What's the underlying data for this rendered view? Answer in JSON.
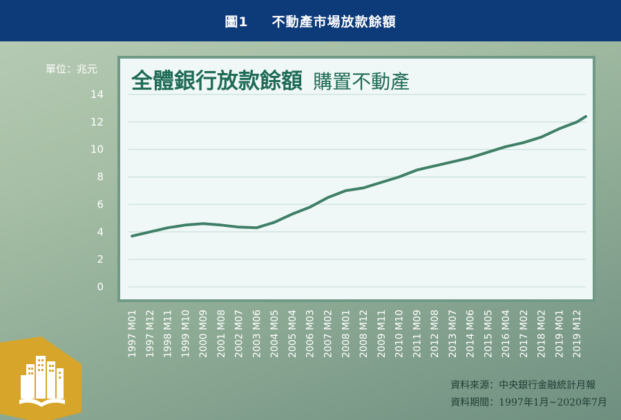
{
  "header": {
    "figure_label": "圖1",
    "title": "不動產市場放款餘額"
  },
  "unit_label": "單位：兆元",
  "chart_title": {
    "main": "全體銀行放款餘額",
    "sub": "購置不動產"
  },
  "source": {
    "line1": "資料來源：中央銀行金融統計月報",
    "line2": "資料期間：1997年1月~2020年7月"
  },
  "colors": {
    "header": "#0d3a78",
    "line": "#3f7f67",
    "title": "#1f6b56",
    "logo": "#d6a52a"
  },
  "icons": {
    "logo": "city-buildings-hexagon-icon"
  },
  "chart_data": {
    "type": "line",
    "title": "全體銀行放款餘額 購置不動產",
    "ylabel": "單位：兆元",
    "ylim": [
      0,
      14
    ],
    "yticks": [
      0,
      2,
      4,
      6,
      8,
      10,
      12,
      14
    ],
    "grid": true,
    "x_tick_labels": [
      "1997 M01",
      "1997 M12",
      "1998 M11",
      "1999 M10",
      "2000 M09",
      "2001 M08",
      "2002 M07",
      "2003 M06",
      "2004 M05",
      "2005 M04",
      "2006 M03",
      "2007 M02",
      "2008 M01",
      "2008 M12",
      "2009 M11",
      "2010 M10",
      "2011 M09",
      "2012 M08",
      "2013 M07",
      "2014 M06",
      "2015 M05",
      "2016 M04",
      "2017 M02",
      "2018 M02",
      "2019 M01",
      "2019 M12"
    ],
    "series": [
      {
        "x": [
          "1997 M01",
          "1997 M12",
          "1998 M11",
          "1999 M10",
          "2000 M09",
          "2001 M08",
          "2002 M07",
          "2003 M06",
          "2004 M05",
          "2005 M04",
          "2006 M03",
          "2007 M02",
          "2008 M01",
          "2008 M12",
          "2009 M11",
          "2010 M10",
          "2011 M09",
          "2012 M08",
          "2013 M07",
          "2014 M06",
          "2015 M05",
          "2016 M04",
          "2017 M02",
          "2018 M02",
          "2019 M01",
          "2019 M12",
          "2020 M07"
        ],
        "values": [
          3.7,
          4.0,
          4.3,
          4.5,
          4.6,
          4.5,
          4.35,
          4.3,
          4.7,
          5.3,
          5.8,
          6.5,
          7.0,
          7.2,
          7.6,
          8.0,
          8.5,
          8.8,
          9.1,
          9.4,
          9.8,
          10.2,
          10.5,
          10.9,
          11.5,
          12.0,
          12.4
        ]
      }
    ]
  }
}
